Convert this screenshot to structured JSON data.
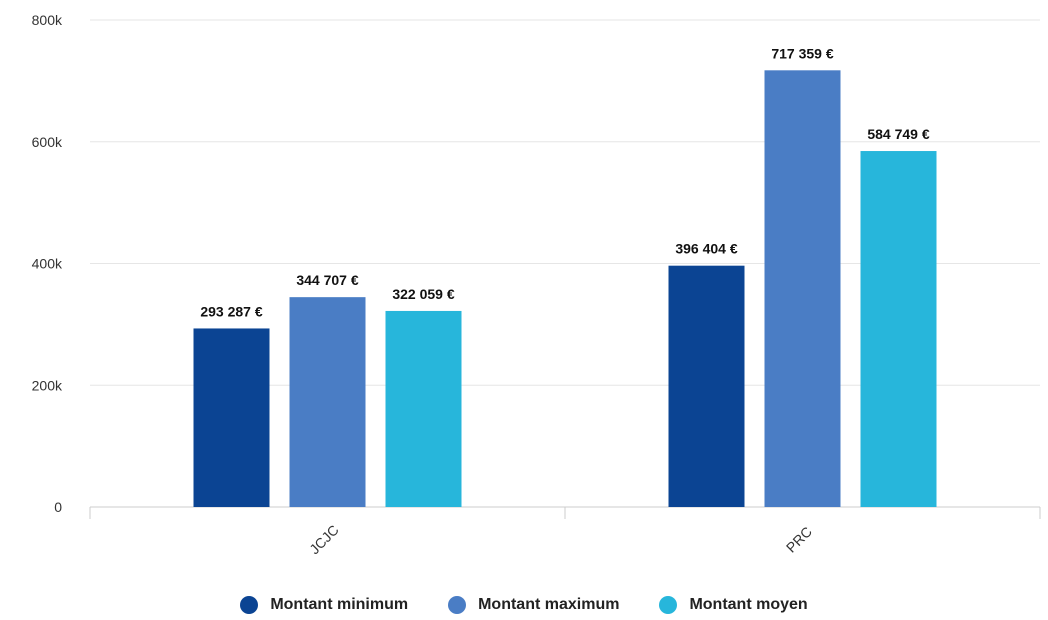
{
  "chart_data": {
    "type": "bar",
    "categories": [
      "JCJC",
      "PRC"
    ],
    "series": [
      {
        "name": "Montant minimum",
        "color": "#0b4493",
        "values": [
          293287,
          396404
        ],
        "labels": [
          "293 287 €",
          "396 404 €"
        ]
      },
      {
        "name": "Montant maximum",
        "color": "#4a7dc5",
        "values": [
          344707,
          717359
        ],
        "labels": [
          "344 707 €",
          "717 359 €"
        ]
      },
      {
        "name": "Montant moyen",
        "color": "#27b6db",
        "values": [
          322059,
          584749
        ],
        "labels": [
          "322 059 €",
          "584 749 €"
        ]
      }
    ],
    "y_ticks": [
      {
        "value": 0,
        "label": "0"
      },
      {
        "value": 200000,
        "label": "200k"
      },
      {
        "value": 400000,
        "label": "400k"
      },
      {
        "value": 600000,
        "label": "600k"
      },
      {
        "value": 800000,
        "label": "800k"
      }
    ],
    "ylim": [
      0,
      800000
    ],
    "grid": true,
    "legend": "bottom-center"
  }
}
